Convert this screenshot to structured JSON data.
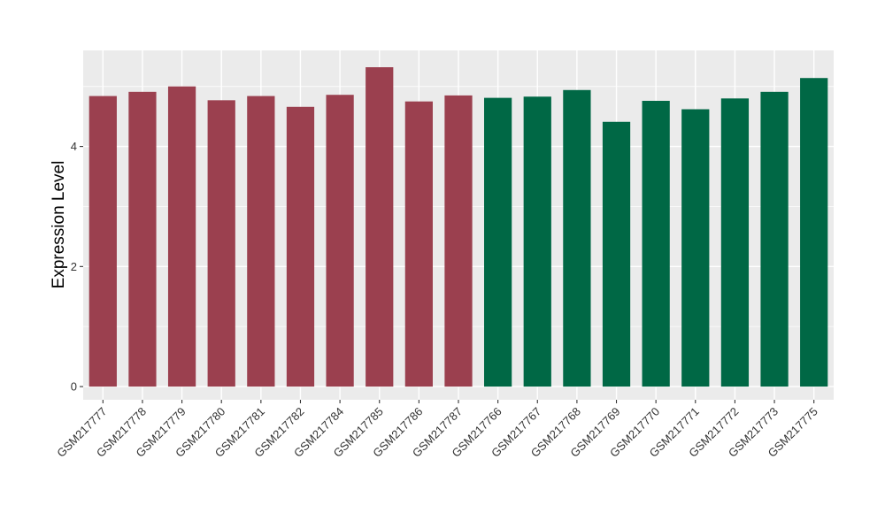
{
  "chart_data": {
    "type": "bar",
    "title": "",
    "xlabel": "",
    "ylabel": "Expression Level",
    "ylim": [
      -0.22,
      5.6
    ],
    "y_ticks": [
      0,
      2,
      4
    ],
    "grid": true,
    "legend": "none",
    "categories": [
      "GSM217777",
      "GSM217778",
      "GSM217779",
      "GSM217780",
      "GSM217781",
      "GSM217782",
      "GSM217784",
      "GSM217785",
      "GSM217786",
      "GSM217787",
      "GSM217766",
      "GSM217767",
      "GSM217768",
      "GSM217769",
      "GSM217770",
      "GSM217771",
      "GSM217772",
      "GSM217773",
      "GSM217775"
    ],
    "values": [
      4.84,
      4.91,
      5.0,
      4.77,
      4.84,
      4.66,
      4.86,
      5.32,
      4.75,
      4.85,
      4.81,
      4.83,
      4.94,
      4.41,
      4.76,
      4.62,
      4.8,
      4.91,
      5.14
    ],
    "bar_colors": [
      "#9b404f",
      "#9b404f",
      "#9b404f",
      "#9b404f",
      "#9b404f",
      "#9b404f",
      "#9b404f",
      "#9b404f",
      "#9b404f",
      "#9b404f",
      "#006845",
      "#006845",
      "#006845",
      "#006845",
      "#006845",
      "#006845",
      "#006845",
      "#006845",
      "#006845"
    ],
    "panel_background": "#ebebeb",
    "grid_color": "#ffffff"
  }
}
